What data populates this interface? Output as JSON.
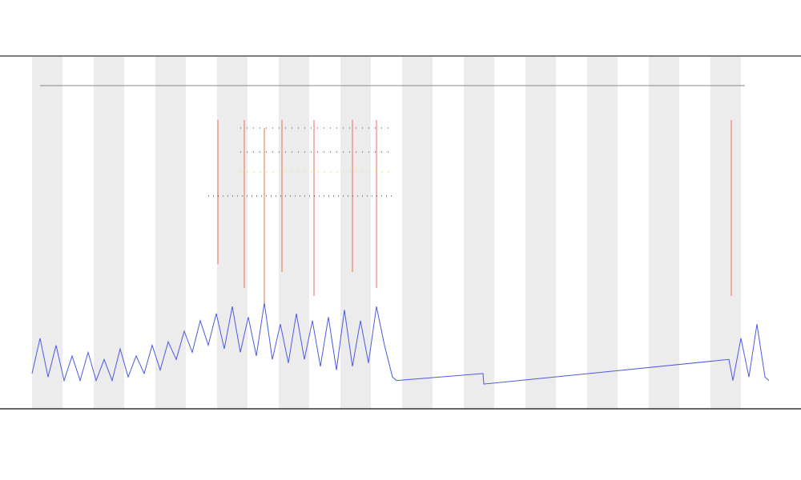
{
  "chart_data": {
    "type": "line",
    "x": [
      0,
      10,
      20,
      30,
      40,
      50,
      60,
      70,
      80,
      90,
      100,
      110,
      120,
      130,
      140,
      150,
      160,
      170,
      180,
      190,
      200,
      210,
      220,
      230,
      240,
      250,
      260,
      270,
      280,
      290,
      300,
      310,
      320,
      330,
      340,
      350,
      360,
      370,
      380,
      390,
      400,
      410,
      420,
      430,
      440,
      450,
      455,
      563,
      564,
      870,
      875,
      885,
      895,
      905,
      915,
      920
    ],
    "xlim": [
      0,
      920
    ],
    "ylim": [
      0,
      100
    ],
    "series": [
      {
        "color": "#4a5ae0",
        "values": [
          10,
          20,
          9,
          18,
          8,
          15,
          8,
          16,
          8,
          14,
          8,
          17,
          9,
          15,
          10,
          18,
          11,
          19,
          14,
          22,
          16,
          25,
          18,
          27,
          17,
          29,
          16,
          26,
          15,
          30,
          14,
          24,
          13,
          27,
          14,
          25,
          12,
          26,
          11,
          28,
          12,
          25,
          13,
          29,
          18,
          9,
          8,
          10,
          7,
          14,
          8,
          20,
          9,
          24,
          9,
          8
        ]
      }
    ],
    "band_color": "#ececec"
  }
}
